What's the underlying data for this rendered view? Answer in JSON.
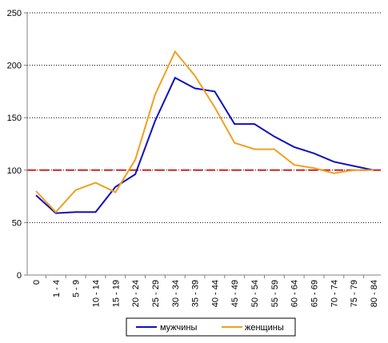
{
  "chart_data": {
    "type": "line",
    "title": "",
    "xlabel": "",
    "ylabel": "",
    "categories": [
      "0",
      "1 - 4",
      "5 - 9",
      "10 - 14",
      "15 - 19",
      "20 - 24",
      "25 - 29",
      "30 - 34",
      "35 - 39",
      "40 - 44",
      "45 - 49",
      "50 - 54",
      "55 - 59",
      "60 - 64",
      "65 - 69",
      "70 - 74",
      "75 - 79",
      "80 - 84"
    ],
    "ylim": [
      0,
      250
    ],
    "yticks": [
      0,
      50,
      100,
      150,
      200,
      250
    ],
    "grid": "horizontal dotted",
    "reference_line": {
      "value": 100,
      "color": "#d62020",
      "style": "dashed"
    },
    "legend_position": "bottom",
    "series": [
      {
        "name": "мужчины",
        "color": "#1010c0",
        "values": [
          76,
          59,
          60,
          60,
          84,
          96,
          147,
          188,
          178,
          175,
          144,
          144,
          132,
          122,
          116,
          108,
          104,
          100
        ]
      },
      {
        "name": "женщины",
        "color": "#f0a020",
        "values": [
          80,
          60,
          81,
          88,
          79,
          110,
          172,
          213,
          190,
          160,
          126,
          120,
          120,
          105,
          102,
          97,
          100,
          100
        ]
      }
    ]
  }
}
